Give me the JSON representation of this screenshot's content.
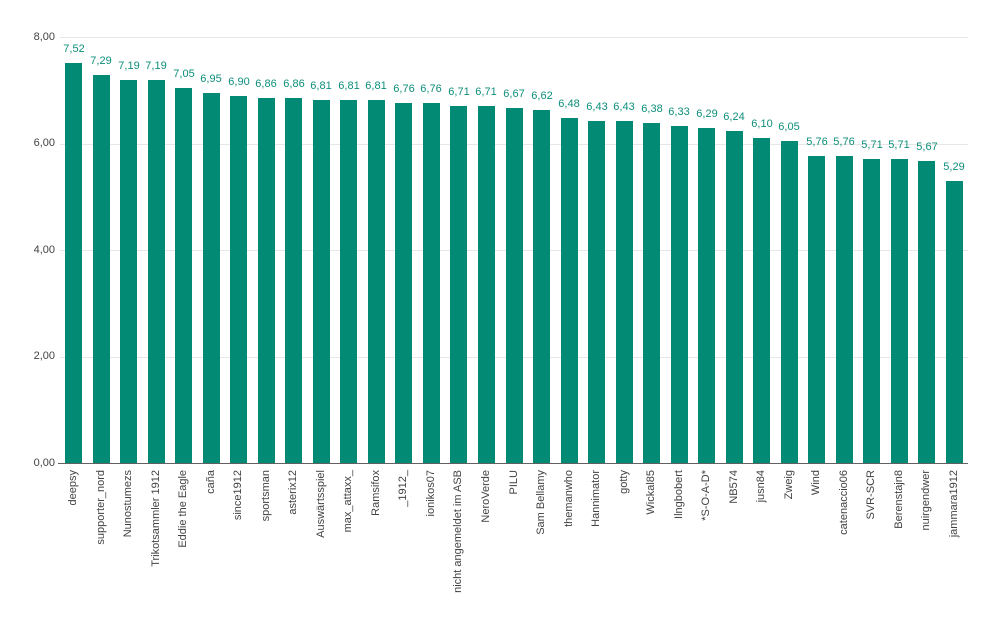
{
  "chart_data": {
    "type": "bar",
    "title": "",
    "xlabel": "",
    "ylabel": "",
    "categories": [
      "deepsy",
      "supporter_nord",
      "Nunostumezs",
      "Trikotsammler 1912",
      "Eddie the Eagle",
      "caña",
      "since1912",
      "sportsman",
      "asterix12",
      "Auswärtsspiel",
      "max_attaxx_",
      "Ramsifox",
      "_1912_",
      "ionikos07",
      "nicht angemeldet im ASB",
      "NeroVerde",
      "PILU",
      "Sam Bellamy",
      "themanwho",
      "Hannimator",
      "gotty",
      "Wickal85",
      "Ilngbobert",
      "*S-O-A-D*",
      "NB574",
      "jusn84",
      "Zweig",
      "Wind",
      "catenaccio06",
      "SVR-SCR",
      "Berenstajn8",
      "nuirgendwer",
      "jammara1912"
    ],
    "values": [
      7.52,
      7.29,
      7.19,
      7.19,
      7.05,
      6.95,
      6.9,
      6.86,
      6.86,
      6.81,
      6.81,
      6.81,
      6.76,
      6.76,
      6.71,
      6.71,
      6.67,
      6.62,
      6.48,
      6.43,
      6.43,
      6.38,
      6.33,
      6.29,
      6.24,
      6.1,
      6.05,
      5.76,
      5.76,
      5.71,
      5.71,
      5.67,
      5.29
    ],
    "display_values": [
      "7,52",
      "7,29",
      "7,19",
      "7,19",
      "7,05",
      "6,95",
      "6,90",
      "6,86",
      "6,86",
      "6,81",
      "6,81",
      "6,81",
      "6,76",
      "6,76",
      "6,71",
      "6,71",
      "6,67",
      "6,62",
      "6,48",
      "6,43",
      "6,43",
      "6,38",
      "6,33",
      "6,29",
      "6,24",
      "6,10",
      "6,05",
      "5,76",
      "5,76",
      "5,71",
      "5,71",
      "5,67",
      "5,29"
    ],
    "yticks": [
      {
        "value": 8,
        "label": "8,00"
      },
      {
        "value": 6,
        "label": "6,00"
      },
      {
        "value": 4,
        "label": "4,00"
      },
      {
        "value": 2,
        "label": "2,00"
      },
      {
        "value": 0,
        "label": "0,00"
      }
    ],
    "ylim": [
      0,
      8
    ],
    "grid": true,
    "legend": "none",
    "bar_color": "#038a75",
    "value_label_color": "#0d8e7a",
    "grid_color": "#e6e6e6",
    "axis_line_color": "#616161",
    "text_color": "#424242",
    "background_color": "#ffffff"
  }
}
